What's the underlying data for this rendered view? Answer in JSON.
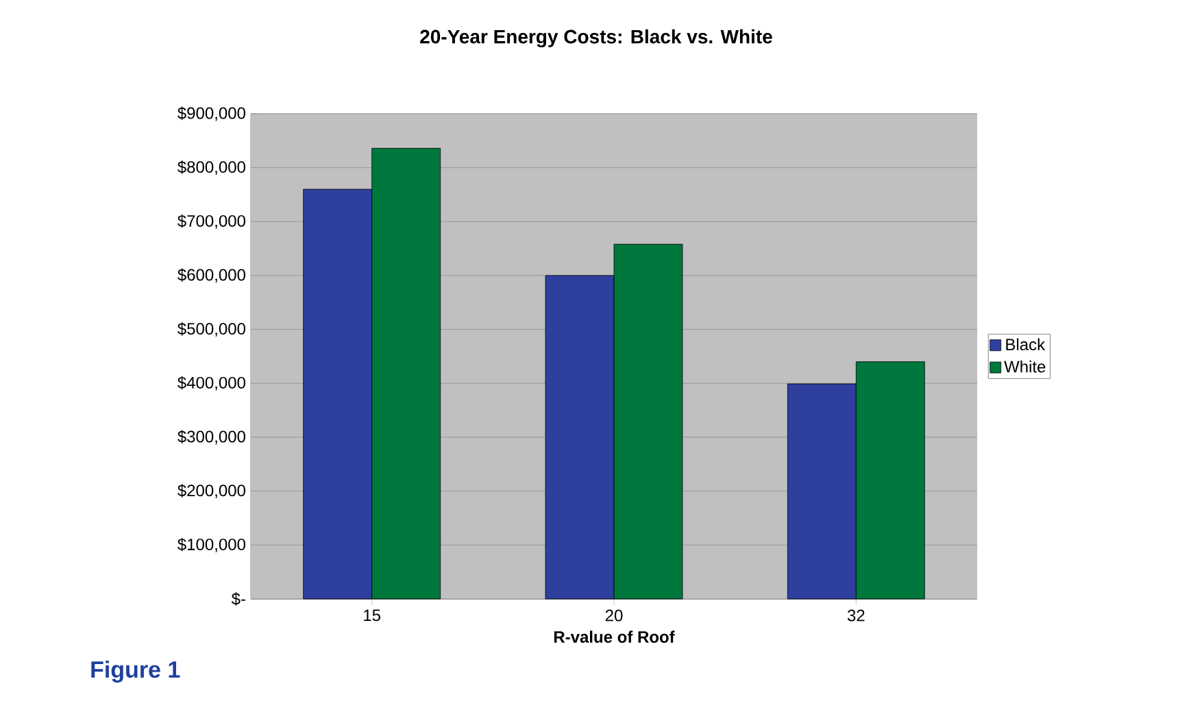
{
  "chart_data": {
    "type": "bar",
    "title": "20-Year Energy Costs: Black vs. White",
    "xlabel": "R-value of Roof",
    "categories": [
      "15",
      "20",
      "32"
    ],
    "series": [
      {
        "name": "Black",
        "color": "#2e3f9e",
        "values": [
          760000,
          600000,
          399000
        ]
      },
      {
        "name": "White",
        "color": "#00773c",
        "values": [
          836000,
          658000,
          440000
        ]
      }
    ],
    "ylim": [
      0,
      900000
    ],
    "yticks": [
      {
        "value": 0,
        "label": "$-"
      },
      {
        "value": 100000,
        "label": "$100,000"
      },
      {
        "value": 200000,
        "label": "$200,000"
      },
      {
        "value": 300000,
        "label": "$300,000"
      },
      {
        "value": 400000,
        "label": "$400,000"
      },
      {
        "value": 500000,
        "label": "$500,000"
      },
      {
        "value": 600000,
        "label": "$600,000"
      },
      {
        "value": 700000,
        "label": "$700,000"
      },
      {
        "value": 800000,
        "label": "$800,000"
      },
      {
        "value": 900000,
        "label": "$900,000"
      }
    ],
    "grid": "y",
    "legend": "right",
    "annotations": [
      "Figure 1"
    ]
  }
}
